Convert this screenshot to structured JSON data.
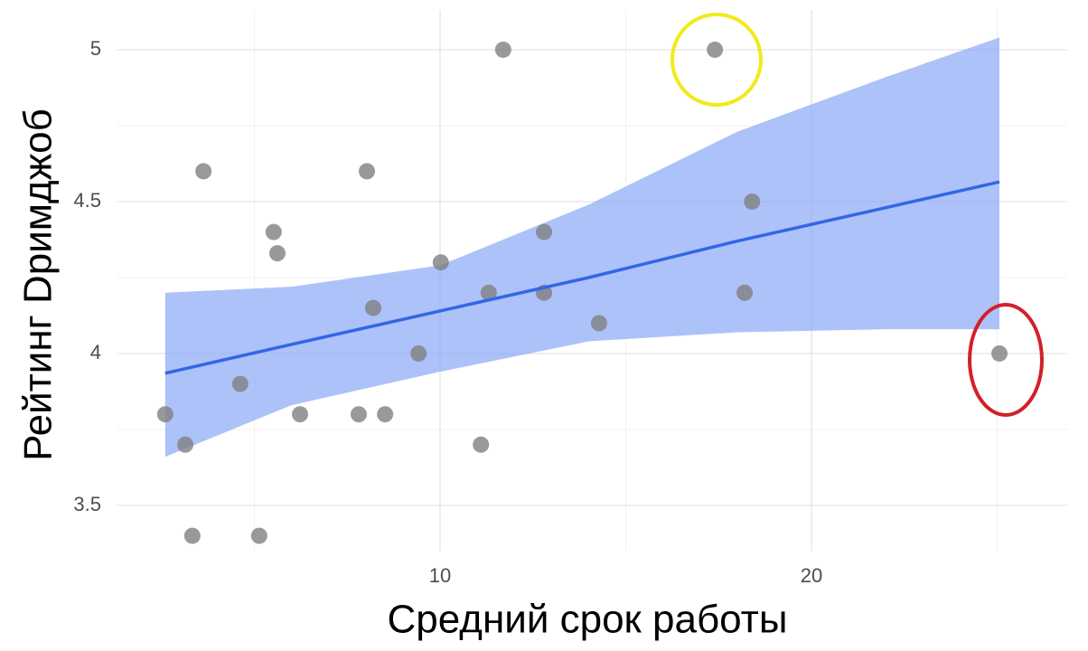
{
  "chart_data": {
    "type": "scatter",
    "x_label": "Средний срок работы",
    "y_label": "Рейтинг Dримджоб",
    "xlim": [
      1.3,
      26.9
    ],
    "ylim": [
      3.35,
      5.13
    ],
    "xticks": [
      10,
      20
    ],
    "yticks": [
      3.5,
      4.0,
      4.5,
      5.0
    ],
    "grid": true,
    "series": [
      {
        "color": "#808080",
        "x": [
          2.6,
          3.14,
          3.33,
          3.63,
          4.62,
          5.13,
          5.52,
          5.62,
          6.23,
          7.81,
          8.03,
          8.2,
          8.52,
          9.42,
          10.02,
          11.1,
          11.31,
          11.7,
          12.8,
          12.8,
          14.28,
          17.4,
          18.2,
          18.4,
          25.06
        ],
        "values": [
          3.8,
          3.7,
          3.4,
          4.6,
          3.9,
          3.4,
          4.4,
          4.33,
          3.8,
          3.8,
          4.6,
          4.15,
          3.8,
          4.0,
          4.3,
          3.7,
          4.2,
          5.0,
          4.4,
          4.2,
          4.1,
          5.0,
          4.2,
          4.5,
          4.0
        ]
      }
    ],
    "fit": {
      "color": "#3366e6",
      "band_color": "#8aa8f5",
      "x": [
        2.6,
        6,
        10,
        14,
        18,
        22,
        25.06
      ],
      "values": [
        3.935,
        4.03,
        4.14,
        4.25,
        4.37,
        4.48,
        4.565
      ],
      "lower": [
        3.66,
        3.83,
        3.94,
        4.04,
        4.07,
        4.08,
        4.08
      ],
      "upper": [
        4.2,
        4.22,
        4.29,
        4.49,
        4.73,
        4.91,
        5.04
      ]
    }
  }
}
